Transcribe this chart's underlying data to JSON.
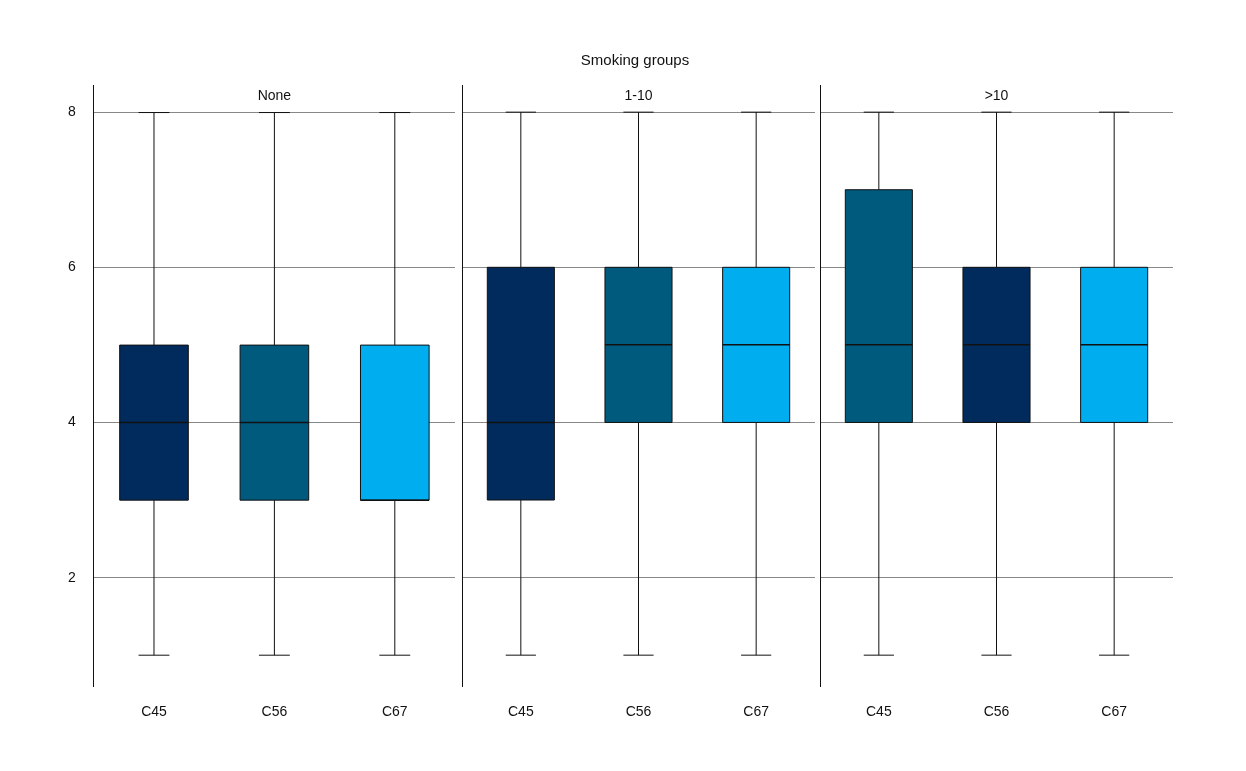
{
  "chart_data": [
    {
      "type": "box",
      "subtitle": "None",
      "categories": [
        "C45",
        "C56",
        "C67"
      ],
      "colors": [
        "#002b5c",
        "#005a7e",
        "#00aeef"
      ],
      "boxes": [
        {
          "low": 1,
          "q1": 3,
          "median": 4,
          "q3": 5,
          "high": 8
        },
        {
          "low": 1,
          "q1": 3,
          "median": 4,
          "q3": 5,
          "high": 8
        },
        {
          "low": 1,
          "q1": 3,
          "median": 3,
          "q3": 5,
          "high": 8
        }
      ],
      "ylim": [
        0.6,
        8.35
      ],
      "yticks": [
        2,
        4,
        6,
        8
      ],
      "grid": "y"
    },
    {
      "type": "box",
      "title": "Smoking groups",
      "subtitle": "1-10",
      "categories": [
        "C45",
        "C56",
        "C67"
      ],
      "colors": [
        "#002b5c",
        "#005a7e",
        "#00aeef"
      ],
      "boxes": [
        {
          "low": 1,
          "q1": 3,
          "median": 4,
          "q3": 6,
          "high": 8
        },
        {
          "low": 1,
          "q1": 4,
          "median": 5,
          "q3": 6,
          "high": 8
        },
        {
          "low": 1,
          "q1": 4,
          "median": 5,
          "q3": 6,
          "high": 8
        }
      ],
      "ylim": [
        0.6,
        8.35
      ],
      "yticks": [
        2,
        4,
        6,
        8
      ],
      "grid": "y",
      "tick_labels": "x"
    },
    {
      "type": "box",
      "subtitle": ">10",
      "categories": [
        "C45",
        "C56",
        "C67"
      ],
      "colors": [
        "#005a7e",
        "#002b5c",
        "#00aeef"
      ],
      "boxes": [
        {
          "low": 1,
          "q1": 4,
          "median": 5,
          "q3": 7,
          "high": 8
        },
        {
          "low": 1,
          "q1": 4,
          "median": 5,
          "q3": 6,
          "high": 8
        },
        {
          "low": 1,
          "q1": 4,
          "median": 5,
          "q3": 6,
          "high": 8
        }
      ],
      "ylim": [
        0.6,
        8.35
      ],
      "yticks": [
        2,
        4,
        6,
        8
      ],
      "grid": "y",
      "tick_labels": "x"
    }
  ]
}
